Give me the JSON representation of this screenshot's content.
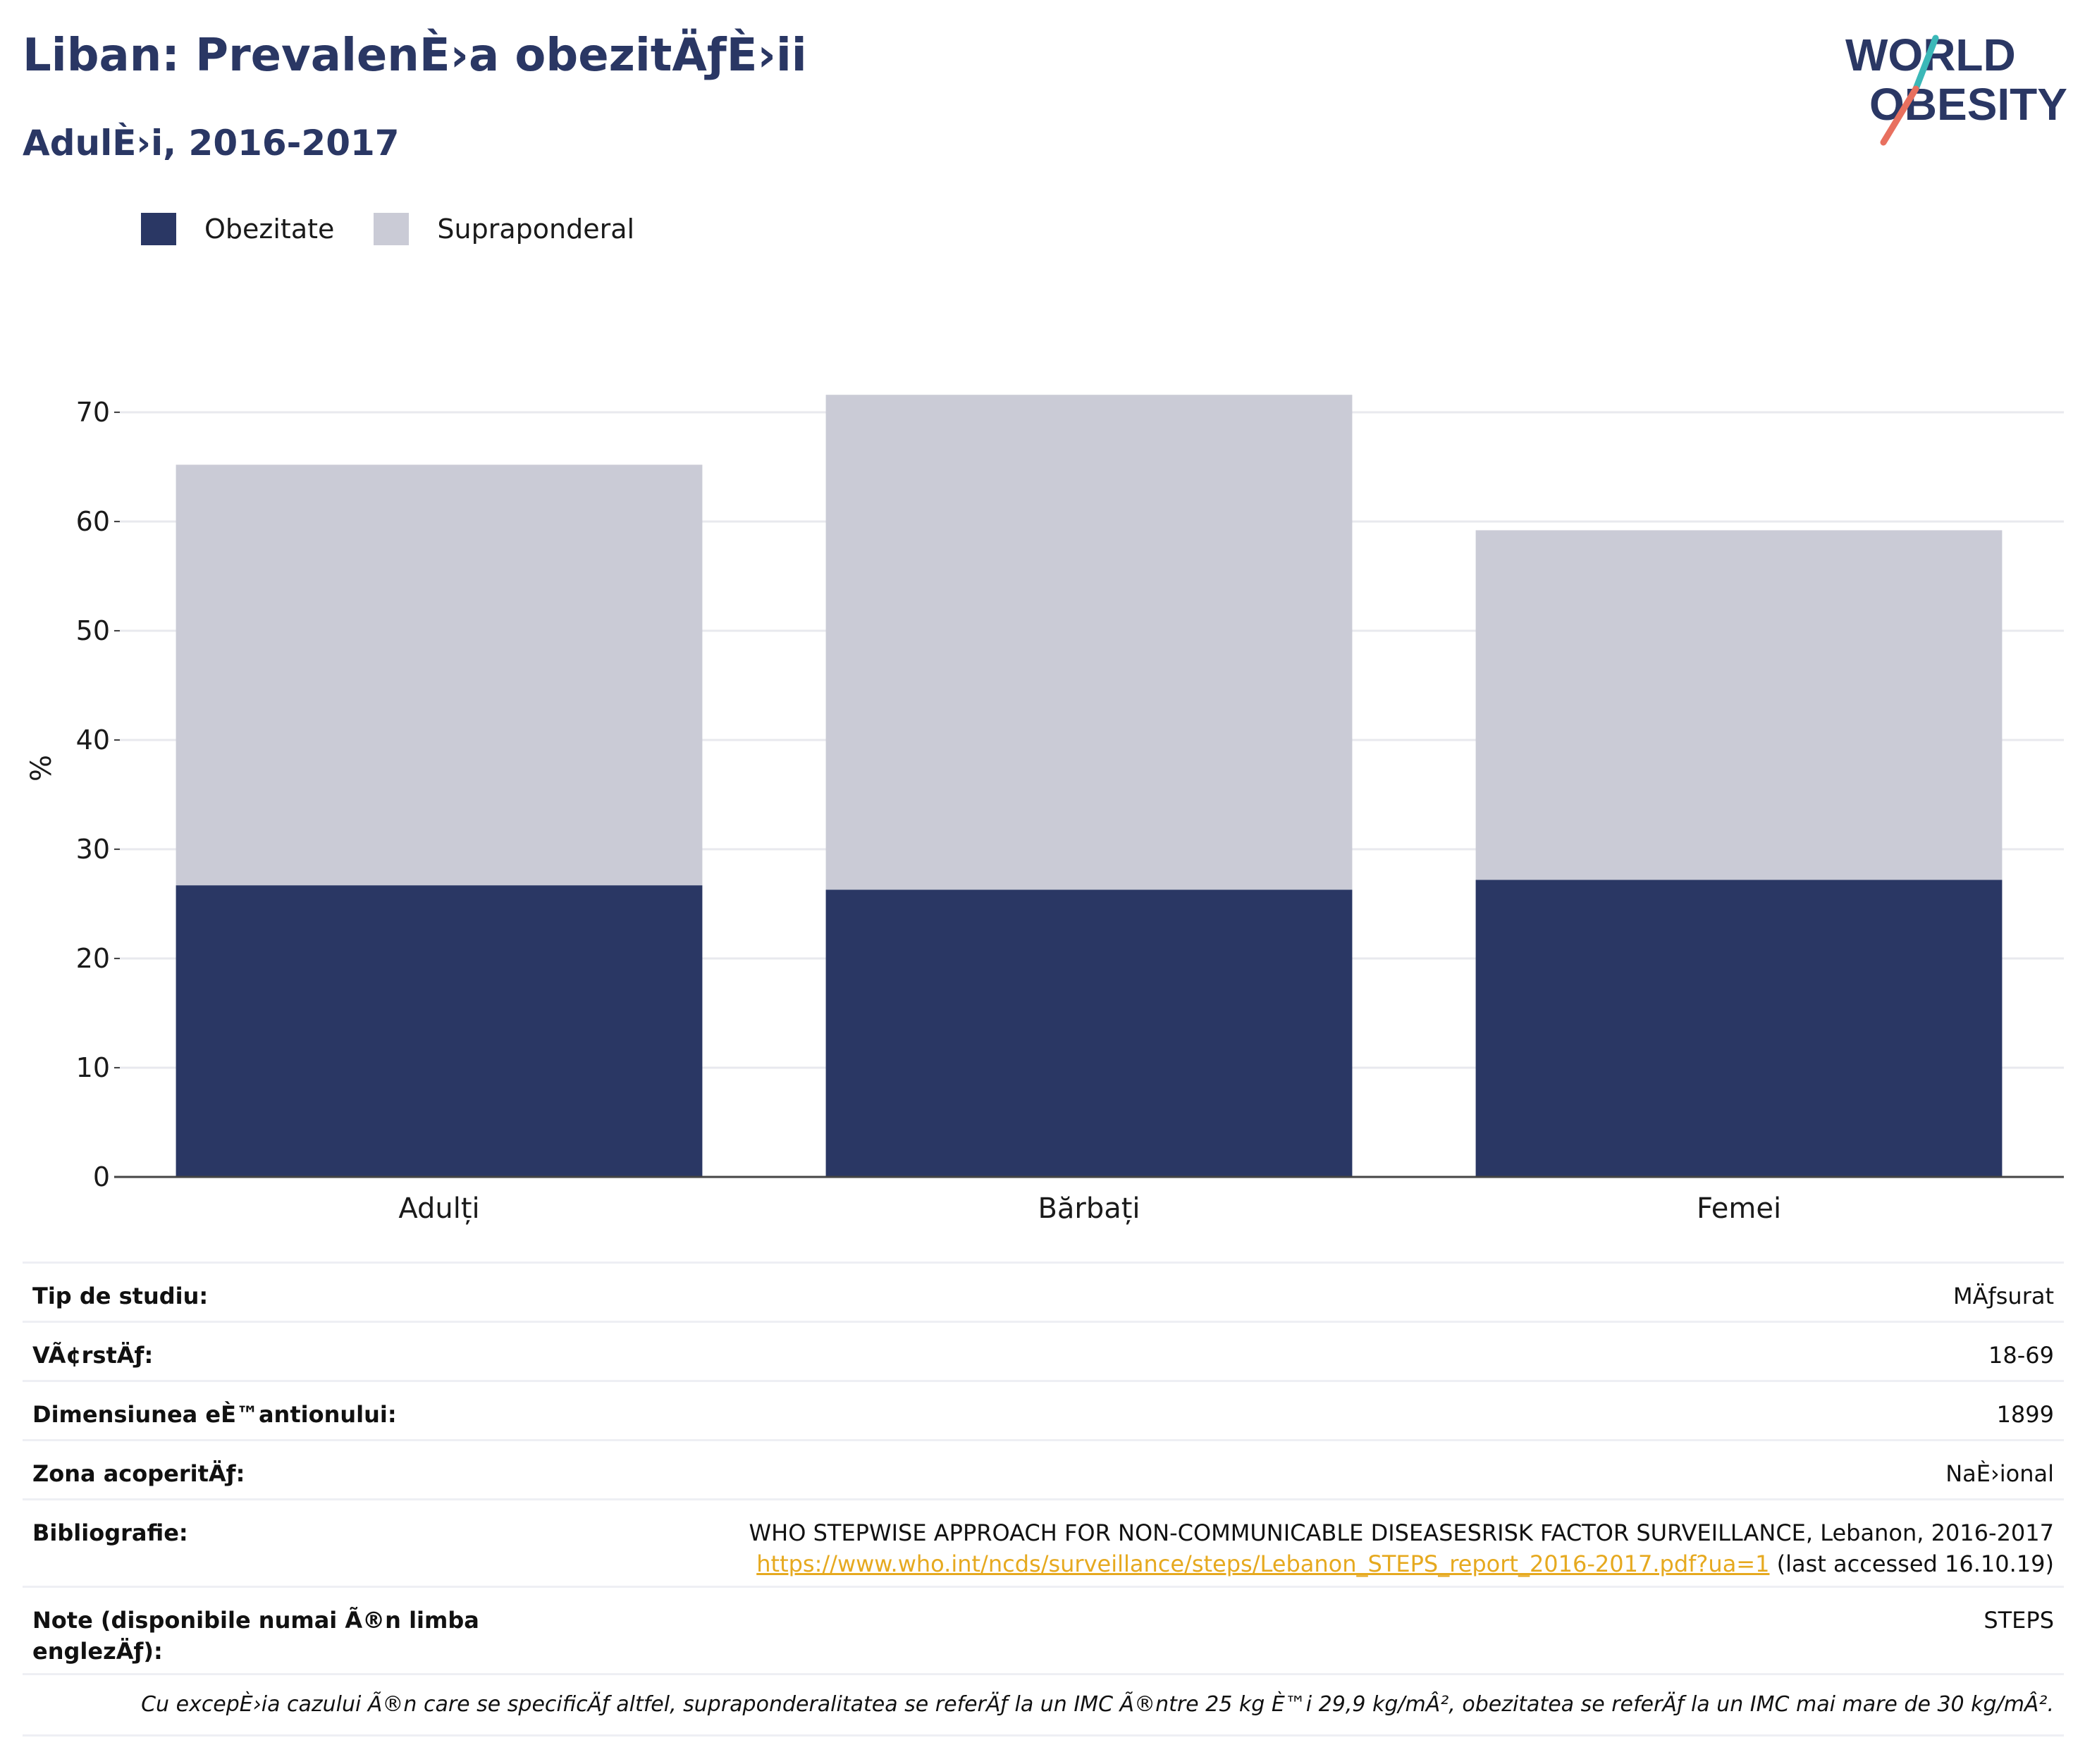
{
  "title": "Liban: PrevalenÈ›a obezitÄƒÈ›ii",
  "subtitle": "AdulÈ›i, 2016-2017",
  "logo": {
    "line1": "WORLD",
    "line2": "OBESITY"
  },
  "legend": [
    {
      "label": "Obezitate",
      "color": "#2a3764"
    },
    {
      "label": "Supraponderal",
      "color": "#cacbd6"
    }
  ],
  "chart_data": {
    "type": "bar",
    "stacked": true,
    "categories": [
      "Adulți",
      "Bărbați",
      "Femei"
    ],
    "series": [
      {
        "name": "Obezitate",
        "color": "#2a3764",
        "values": [
          26.7,
          26.3,
          27.2
        ]
      },
      {
        "name": "Supraponderal",
        "color": "#cacbd6",
        "values": [
          38.5,
          45.3,
          32.0
        ]
      }
    ],
    "totals": [
      65.2,
      71.6,
      59.2
    ],
    "ylabel": "%",
    "xlabel": "",
    "ylim": [
      0,
      75
    ],
    "yticks": [
      0,
      10,
      20,
      30,
      40,
      50,
      60,
      70
    ],
    "grid": true,
    "legend_position": "top-left"
  },
  "info": {
    "study_type": {
      "label": "Tip de studiu:",
      "value": "MÄƒsurat"
    },
    "age": {
      "label": "VÃ¢rstÄƒ:",
      "value": "18-69"
    },
    "sample_size": {
      "label": "Dimensiunea eÈ™antionului:",
      "value": "1899"
    },
    "coverage": {
      "label": "Zona acoperitÄƒ:",
      "value": "NaÈ›ional"
    },
    "bibliography": {
      "label": "Bibliografie:",
      "line1": "WHO STEPWISE APPROACH FOR NON-COMMUNICABLE DISEASESRISK FACTOR SURVEILLANCE, Lebanon, 2016-2017",
      "link": "https://www.who.int/ncds/surveillance/steps/Lebanon_STEPS_report_2016-2017.pdf?ua=1",
      "accessed": "(last accessed 16.10.19)"
    },
    "notes": {
      "label_line1": "Note (disponibile numai Ã®n limba",
      "label_line2": "englezÄƒ):",
      "value": "STEPS"
    }
  },
  "footnote": "Cu excepÈ›ia cazului Ã®n care se specificÄƒ altfel, supraponderalitatea se referÄƒ la un IMC Ã®ntre 25 kg È™i 29,9 kg/mÂ², obezitatea se referÄƒ la un IMC mai mare de 30 kg/mÂ²."
}
